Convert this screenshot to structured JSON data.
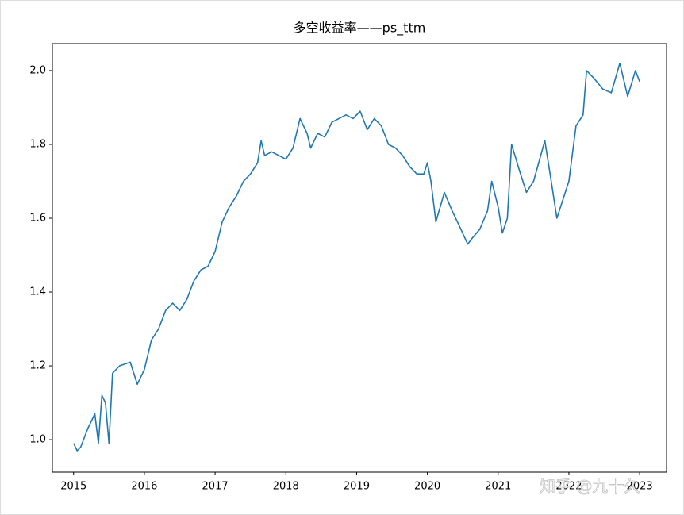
{
  "chart_data": {
    "type": "line",
    "title": "多空收益率——ps_ttm",
    "x": [
      2015.0,
      2015.05,
      2015.1,
      2015.2,
      2015.3,
      2015.35,
      2015.4,
      2015.45,
      2015.5,
      2015.55,
      2015.65,
      2015.8,
      2015.9,
      2016.0,
      2016.1,
      2016.2,
      2016.3,
      2016.4,
      2016.5,
      2016.6,
      2016.7,
      2016.8,
      2016.9,
      2017.0,
      2017.1,
      2017.2,
      2017.3,
      2017.4,
      2017.5,
      2017.6,
      2017.65,
      2017.7,
      2017.8,
      2017.9,
      2018.0,
      2018.1,
      2018.2,
      2018.3,
      2018.35,
      2018.45,
      2018.55,
      2018.65,
      2018.75,
      2018.85,
      2018.95,
      2019.05,
      2019.15,
      2019.25,
      2019.35,
      2019.45,
      2019.55,
      2019.65,
      2019.75,
      2019.85,
      2019.95,
      2020.0,
      2020.05,
      2020.12,
      2020.24,
      2020.35,
      2020.45,
      2020.57,
      2020.65,
      2020.74,
      2020.85,
      2020.91,
      2021.0,
      2021.06,
      2021.13,
      2021.19,
      2021.3,
      2021.4,
      2021.5,
      2021.66,
      2021.75,
      2021.83,
      2022.0,
      2022.1,
      2022.2,
      2022.25,
      2022.35,
      2022.48,
      2022.6,
      2022.72,
      2022.83,
      2022.94,
      2023.0
    ],
    "series": [
      {
        "color": "#1f77b4",
        "values": [
          0.99,
          0.97,
          0.98,
          1.03,
          1.07,
          0.99,
          1.12,
          1.1,
          0.99,
          1.18,
          1.2,
          1.21,
          1.15,
          1.19,
          1.27,
          1.3,
          1.35,
          1.37,
          1.35,
          1.38,
          1.43,
          1.46,
          1.47,
          1.51,
          1.59,
          1.63,
          1.66,
          1.7,
          1.72,
          1.75,
          1.81,
          1.77,
          1.78,
          1.77,
          1.76,
          1.79,
          1.87,
          1.83,
          1.79,
          1.83,
          1.82,
          1.86,
          1.87,
          1.88,
          1.87,
          1.89,
          1.84,
          1.87,
          1.85,
          1.8,
          1.79,
          1.77,
          1.74,
          1.72,
          1.72,
          1.75,
          1.7,
          1.59,
          1.67,
          1.62,
          1.58,
          1.53,
          1.55,
          1.57,
          1.62,
          1.7,
          1.63,
          1.56,
          1.6,
          1.8,
          1.73,
          1.67,
          1.7,
          1.81,
          1.7,
          1.6,
          1.7,
          1.85,
          1.88,
          2.0,
          1.98,
          1.95,
          1.94,
          2.02,
          1.93,
          2.0,
          1.97
        ]
      }
    ],
    "xlim": [
      2014.7,
      2023.38
    ],
    "xticks": [
      2015,
      2016,
      2017,
      2018,
      2019,
      2020,
      2021,
      2022,
      2023
    ],
    "ylim": [
      0.912,
      2.073
    ],
    "yticks": [
      {
        "value": 1.0,
        "label": "1.0"
      },
      1.2,
      1.4,
      1.6,
      1.8,
      {
        "value": 2.0,
        "label": "2.0"
      }
    ]
  },
  "watermark": "知乎 @九十久"
}
